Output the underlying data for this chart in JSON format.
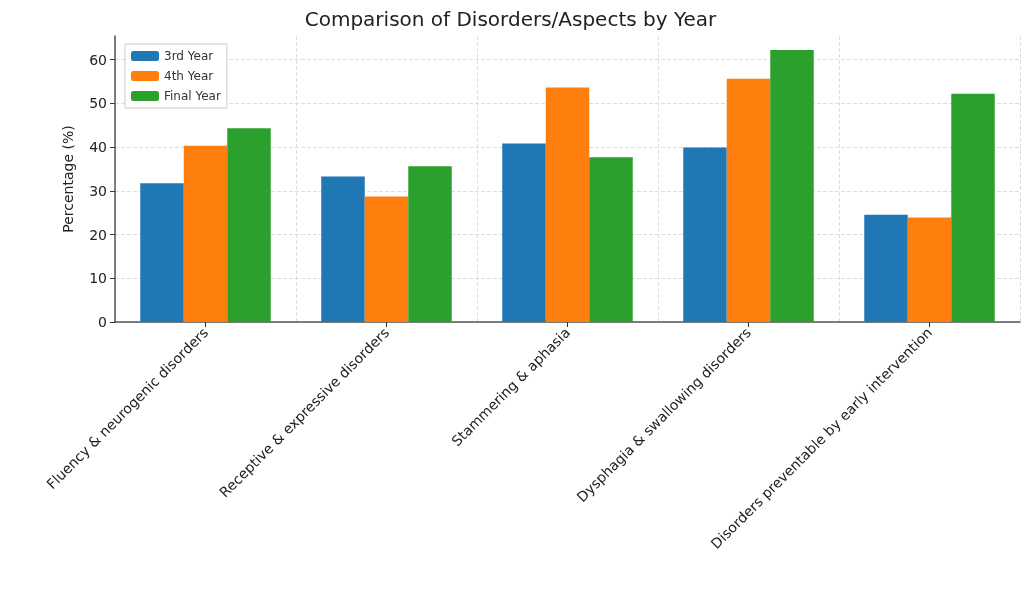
{
  "chart_data": {
    "type": "bar",
    "title": "Comparison of Disorders/Aspects by Year",
    "ylabel": "Percentage (%)",
    "categories": [
      "Fluency & neurogenic disorders",
      "Receptive & expressive disorders",
      "Stammering & aphasia",
      "Dysphagia & swallowing disorders",
      "Disorders preventable by early intervention"
    ],
    "series": [
      {
        "name": "3rd Year",
        "color": "#1f77b4",
        "values": [
          31.7,
          33.3,
          40.8,
          39.9,
          24.5
        ]
      },
      {
        "name": "4th Year",
        "color": "#ff7f0e",
        "values": [
          40.3,
          28.7,
          53.6,
          55.6,
          23.9
        ]
      },
      {
        "name": "Final Year",
        "color": "#2ca02c",
        "values": [
          44.3,
          35.6,
          37.7,
          62.2,
          52.2
        ]
      }
    ],
    "ylim": [
      0,
      65.4
    ],
    "yticks": [
      0,
      10,
      20,
      30,
      40,
      50,
      60
    ],
    "grid": true,
    "legend": "top left"
  }
}
